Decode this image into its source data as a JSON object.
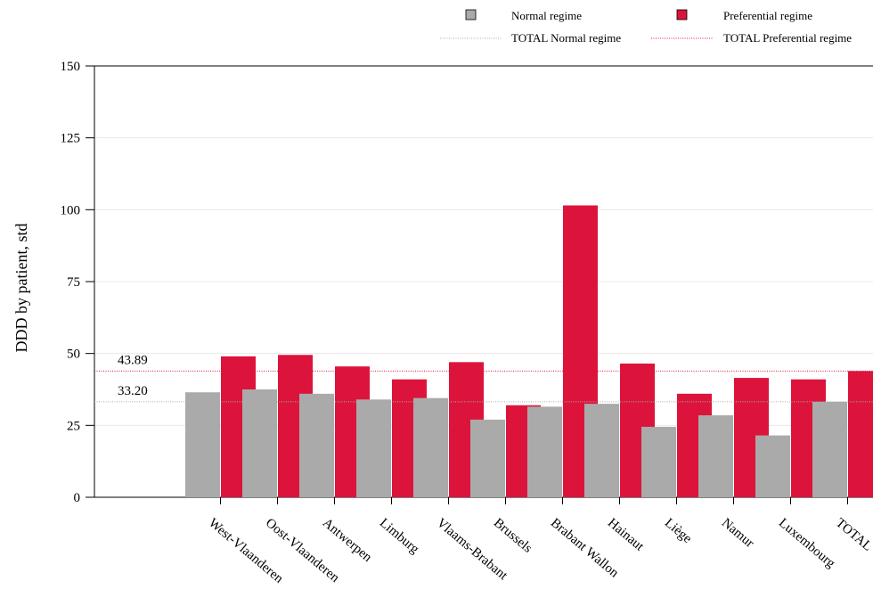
{
  "chart_data": {
    "type": "bar",
    "title": "",
    "xlabel": "",
    "ylabel": "DDD by patient, std",
    "ylim": [
      0,
      150
    ],
    "yticks": [
      0,
      25,
      50,
      75,
      100,
      125,
      150
    ],
    "grid": true,
    "legend_position": "top-right",
    "categories": [
      "West-Vlaanderen",
      "Oost-Vlaanderen",
      "Antwerpen",
      "Limburg",
      "Vlaams-Brabant",
      "Brussels",
      "Brabant Wallon",
      "Hainaut",
      "Liège",
      "Namur",
      "Luxembourg",
      "TOTAL"
    ],
    "series": [
      {
        "name": "Normal regime",
        "color": "#aaaaaa",
        "values": [
          36.5,
          37.5,
          36,
          34,
          34.5,
          27,
          31.5,
          32.5,
          24.5,
          28.5,
          21.5,
          33.2
        ]
      },
      {
        "name": "Preferential regime",
        "color": "#dc143c",
        "values": [
          49,
          49.5,
          45.5,
          41,
          47,
          32,
          101.5,
          46.5,
          36,
          41.5,
          41,
          43.89
        ]
      }
    ],
    "reference_lines": [
      {
        "name": "TOTAL Normal regime",
        "value": 33.2,
        "label": "33.20",
        "color": "#aaaaaa"
      },
      {
        "name": "TOTAL Preferential regime",
        "value": 43.89,
        "label": "43.89",
        "color": "#dc143c"
      }
    ]
  }
}
